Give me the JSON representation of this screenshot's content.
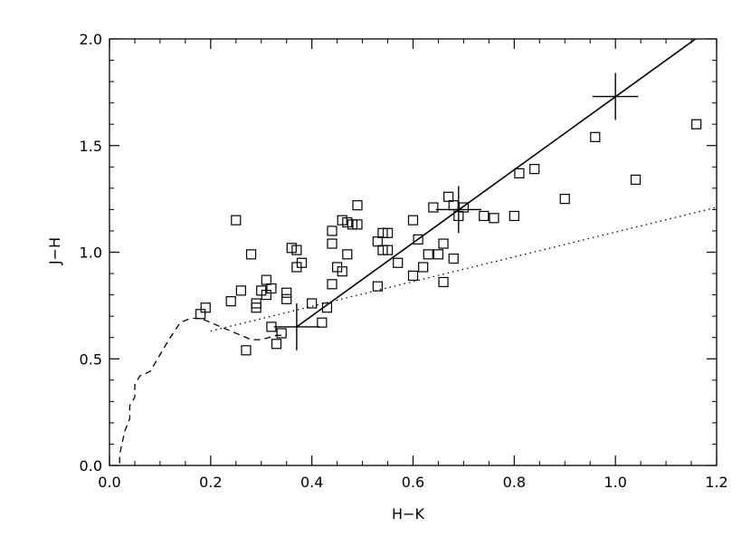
{
  "chart_data": {
    "type": "scatter",
    "title": "",
    "xlabel": "H−K",
    "ylabel": "J−H",
    "xlim": [
      0.0,
      1.2
    ],
    "ylim": [
      0.0,
      2.0
    ],
    "x_ticks": [
      "0.0",
      "0.2",
      "0.4",
      "0.6",
      "0.8",
      "1.0",
      "1.2"
    ],
    "y_ticks": [
      "0.0",
      "0.5",
      "1.0",
      "1.5",
      "2.0"
    ],
    "grid": false,
    "points": [
      [
        0.18,
        0.71
      ],
      [
        0.19,
        0.74
      ],
      [
        0.24,
        0.77
      ],
      [
        0.25,
        1.15
      ],
      [
        0.26,
        0.82
      ],
      [
        0.27,
        0.54
      ],
      [
        0.28,
        0.99
      ],
      [
        0.29,
        0.76
      ],
      [
        0.29,
        0.74
      ],
      [
        0.3,
        0.82
      ],
      [
        0.31,
        0.8
      ],
      [
        0.31,
        0.87
      ],
      [
        0.32,
        0.83
      ],
      [
        0.32,
        0.65
      ],
      [
        0.33,
        0.57
      ],
      [
        0.34,
        0.62
      ],
      [
        0.35,
        0.78
      ],
      [
        0.35,
        0.81
      ],
      [
        0.36,
        1.02
      ],
      [
        0.37,
        1.01
      ],
      [
        0.37,
        0.93
      ],
      [
        0.38,
        0.95
      ],
      [
        0.4,
        0.76
      ],
      [
        0.42,
        0.67
      ],
      [
        0.43,
        0.74
      ],
      [
        0.44,
        0.85
      ],
      [
        0.44,
        1.04
      ],
      [
        0.44,
        1.1
      ],
      [
        0.45,
        0.93
      ],
      [
        0.46,
        0.91
      ],
      [
        0.46,
        1.15
      ],
      [
        0.47,
        1.14
      ],
      [
        0.47,
        0.99
      ],
      [
        0.48,
        1.13
      ],
      [
        0.49,
        1.13
      ],
      [
        0.49,
        1.22
      ],
      [
        0.53,
        0.84
      ],
      [
        0.53,
        1.05
      ],
      [
        0.54,
        1.09
      ],
      [
        0.54,
        1.01
      ],
      [
        0.55,
        1.09
      ],
      [
        0.55,
        1.01
      ],
      [
        0.57,
        0.95
      ],
      [
        0.6,
        0.89
      ],
      [
        0.6,
        1.15
      ],
      [
        0.61,
        1.06
      ],
      [
        0.62,
        0.93
      ],
      [
        0.63,
        0.99
      ],
      [
        0.64,
        1.21
      ],
      [
        0.65,
        0.99
      ],
      [
        0.66,
        0.86
      ],
      [
        0.66,
        1.04
      ],
      [
        0.67,
        1.26
      ],
      [
        0.68,
        1.22
      ],
      [
        0.68,
        0.97
      ],
      [
        0.69,
        1.17
      ],
      [
        0.7,
        1.21
      ],
      [
        0.74,
        1.17
      ],
      [
        0.76,
        1.16
      ],
      [
        0.8,
        1.17
      ],
      [
        0.81,
        1.37
      ],
      [
        0.84,
        1.39
      ],
      [
        0.9,
        1.25
      ],
      [
        0.96,
        1.54
      ],
      [
        1.04,
        1.34
      ],
      [
        1.16,
        1.6
      ]
    ],
    "solid_line": [
      [
        0.37,
        0.65
      ],
      [
        1.17,
        2.02
      ]
    ],
    "dotted_line": [
      [
        0.2,
        0.63
      ],
      [
        1.2,
        1.21
      ]
    ],
    "dashed_curve": [
      [
        0.02,
        0.01
      ],
      [
        0.02,
        0.05
      ],
      [
        0.03,
        0.16
      ],
      [
        0.04,
        0.22
      ],
      [
        0.04,
        0.28
      ],
      [
        0.05,
        0.32
      ],
      [
        0.05,
        0.38
      ],
      [
        0.06,
        0.42
      ],
      [
        0.08,
        0.44
      ],
      [
        0.09,
        0.48
      ],
      [
        0.1,
        0.52
      ],
      [
        0.12,
        0.6
      ],
      [
        0.14,
        0.67
      ],
      [
        0.16,
        0.69
      ],
      [
        0.18,
        0.69
      ],
      [
        0.2,
        0.67
      ],
      [
        0.23,
        0.64
      ],
      [
        0.26,
        0.61
      ],
      [
        0.28,
        0.59
      ],
      [
        0.3,
        0.59
      ],
      [
        0.33,
        0.61
      ],
      [
        0.35,
        0.61
      ]
    ],
    "crosses": [
      [
        0.37,
        0.65
      ],
      [
        0.69,
        1.2
      ],
      [
        1.0,
        1.73
      ]
    ],
    "cross_half_width": 0.045,
    "cross_half_height": 0.11
  }
}
